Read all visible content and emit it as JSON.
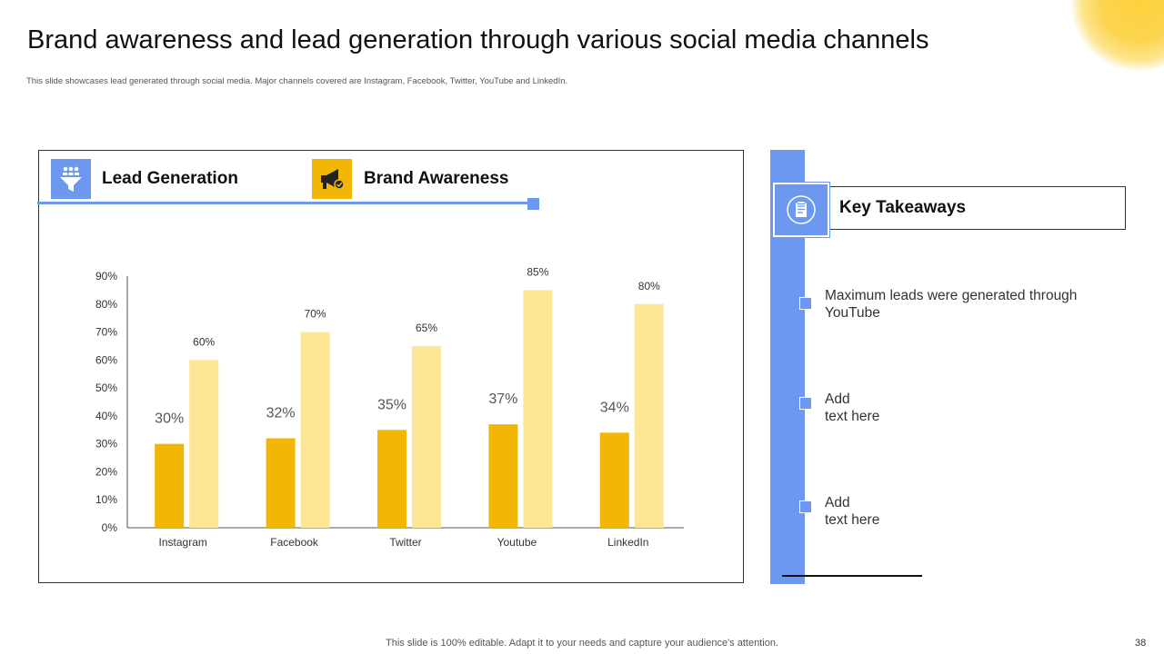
{
  "slide": {
    "title": "Brand awareness and lead generation through various social media channels",
    "subtitle": "This slide showcases lead generated through social media. Major channels covered are Instagram, Facebook, Twitter, YouTube and LinkedIn.",
    "footer": "This slide is 100% editable. Adapt it to your needs and capture your audience's attention.",
    "page_number": "38"
  },
  "legend": {
    "lead_label": "Lead Generation",
    "brand_label": "Brand Awareness",
    "lead_icon": "funnel-people-icon",
    "brand_icon": "megaphone-icon"
  },
  "colors": {
    "lead": "#f2b705",
    "brand": "#fde695",
    "accent_blue": "#6c98f0"
  },
  "chart_data": {
    "type": "bar",
    "title": "",
    "xlabel": "",
    "ylabel": "",
    "categories": [
      "Instagram",
      "Facebook",
      "Twitter",
      "Youtube",
      "LinkedIn"
    ],
    "series": [
      {
        "name": "Lead Generation",
        "values": [
          30,
          32,
          35,
          37,
          34
        ],
        "labels": [
          "30%",
          "32%",
          "35%",
          "37%",
          "34%"
        ]
      },
      {
        "name": "Brand Awareness",
        "values": [
          60,
          70,
          65,
          85,
          80
        ],
        "labels": [
          "60%",
          "70%",
          "65%",
          "85%",
          "80%"
        ]
      }
    ],
    "ylim": [
      0,
      90
    ],
    "yticks": [
      0,
      10,
      20,
      30,
      40,
      50,
      60,
      70,
      80,
      90
    ],
    "ytick_labels": [
      "0%",
      "10%",
      "20%",
      "30%",
      "40%",
      "50%",
      "60%",
      "70%",
      "80%",
      "90%"
    ],
    "grid": false
  },
  "takeaways": {
    "title": "Key Takeaways",
    "icon": "notepad-icon",
    "items": [
      "Maximum leads were generated through\nYouTube",
      "Add\ntext here",
      "Add\ntext here"
    ]
  }
}
